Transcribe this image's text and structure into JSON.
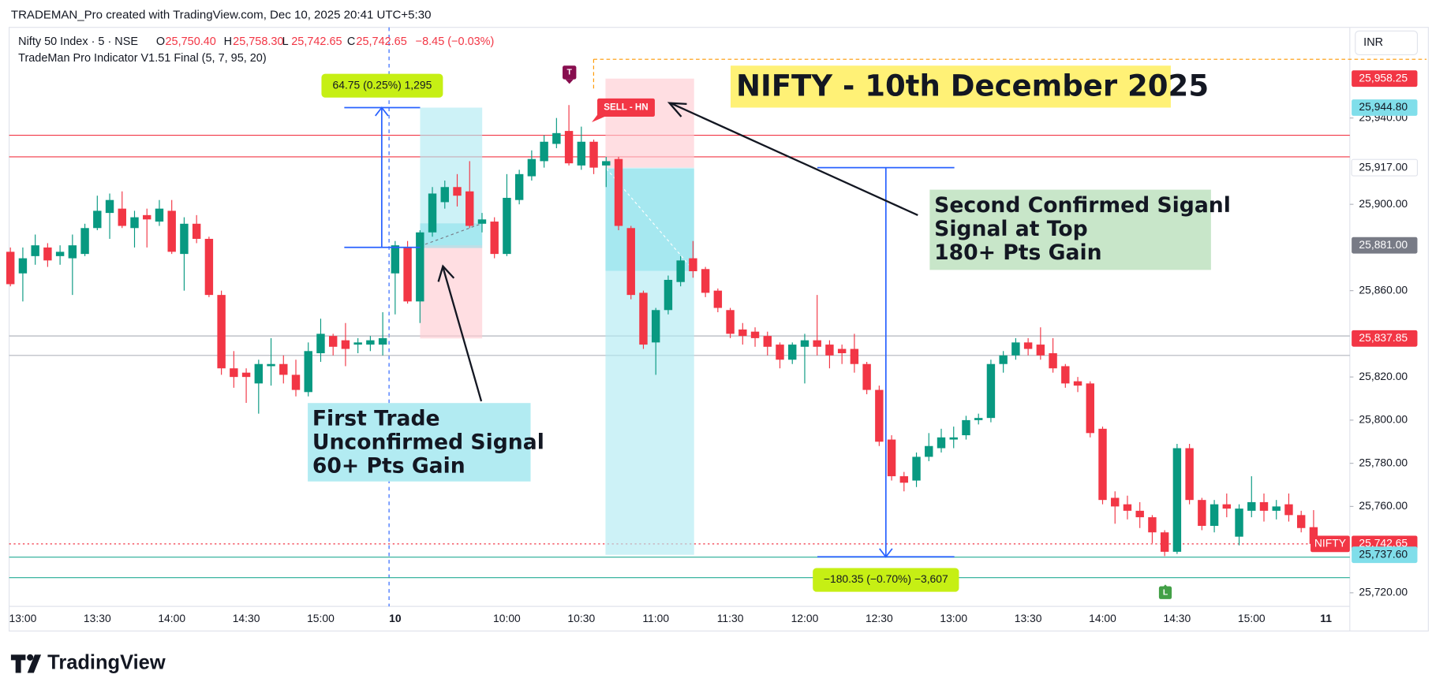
{
  "header": {
    "credit": "TRADEMAN_Pro created with TradingView.com, Dec 10, 2025 20:41 UTC+5:30"
  },
  "chart_data": {
    "type": "candlestick",
    "symbol": "Nifty 50 Index · 5 · NSE",
    "ohlc_legend": [
      {
        "label": "O",
        "value": "25,750.40"
      },
      {
        "label": "H",
        "value": "25,758.30"
      },
      {
        "label": "L",
        "value": "25,742.65"
      },
      {
        "label": "C",
        "value": "25,742.65"
      }
    ],
    "change": "−8.45 (−0.03%)",
    "indicator": "TradeMan Pro Indicator V1.51 Final (5, 7, 95, 20)",
    "currency": "INR",
    "up_color": "#089981",
    "down_color": "#f23645",
    "categories": [
      null,
      "13:00",
      null,
      null,
      null,
      null,
      null,
      "13:30",
      null,
      null,
      null,
      null,
      null,
      "14:00",
      null,
      null,
      null,
      null,
      null,
      "14:30",
      null,
      null,
      null,
      null,
      null,
      "15:00",
      null,
      null,
      null,
      null,
      null,
      "10",
      null,
      null,
      null,
      null,
      null,
      null,
      null,
      null,
      "10:00",
      null,
      null,
      null,
      null,
      null,
      "10:30",
      null,
      null,
      null,
      null,
      null,
      "11:00",
      null,
      null,
      null,
      null,
      null,
      "11:30",
      null,
      null,
      null,
      null,
      null,
      "12:00",
      null,
      null,
      null,
      null,
      null,
      "12:30",
      null,
      null,
      null,
      null,
      null,
      "13:00",
      null,
      null,
      null,
      null,
      null,
      "13:30",
      null,
      null,
      null,
      null,
      null,
      "14:00",
      null,
      null,
      null,
      null,
      null,
      "14:30",
      null,
      null,
      null,
      null,
      null,
      "15:00",
      null,
      null,
      null,
      null,
      null,
      "11"
    ],
    "open": [
      25878,
      25868,
      25876,
      25880,
      25876,
      25875,
      25877,
      25889,
      25896,
      25898,
      25889,
      25895,
      25892,
      25897,
      25877,
      25891,
      25884,
      25858,
      25824,
      25822,
      25817,
      25825,
      25826,
      25821,
      25813,
      25831,
      25839,
      25837,
      25835,
      25835,
      25835,
      25868,
      25880,
      25855,
      25887,
      25901,
      25908,
      25906,
      25891,
      25892,
      25877,
      25902,
      25913,
      25920,
      25928,
      25934,
      25918,
      25929,
      25918,
      25921,
      25889,
      25859,
      25836,
      25851,
      25864,
      25875,
      25870,
      25860,
      25851,
      25842,
      25841,
      25839,
      25835,
      25828,
      25834,
      25837,
      25835,
      25833,
      25833,
      25826,
      25814,
      25791,
      25774,
      25772,
      25783,
      25787,
      25791,
      25793,
      25800,
      25801,
      25826,
      25830,
      25836,
      25835,
      25831,
      25825,
      25818,
      25817,
      25796,
      25764,
      25761,
      25758,
      25755,
      25748,
      25739,
      25787,
      25763,
      25751,
      25761,
      25746,
      25758,
      25762,
      25758,
      25761,
      25756,
      25750.4,
      null
    ],
    "high": [
      25880,
      25880,
      25886,
      25882,
      25881,
      25886,
      25891,
      25904,
      25905,
      25906,
      25897,
      25898,
      25902,
      25902,
      25894,
      25895,
      25885,
      25860,
      25832,
      25824,
      25828,
      25838,
      25830,
      25828,
      25836,
      25847,
      25840,
      25845,
      25838,
      25839,
      25850,
      25883,
      25883,
      25888,
      25908,
      25911,
      25914,
      25920,
      25896,
      25894,
      25914,
      25916,
      25925,
      25932,
      25940,
      25946,
      25936,
      25930,
      25922,
      25922,
      25890,
      25860,
      25852,
      25867,
      25876,
      25883,
      25871,
      25861,
      25852,
      25845,
      25843,
      25841,
      25836,
      25836,
      25840,
      25858,
      25837,
      25835,
      25840,
      25827,
      25816,
      25793,
      25776,
      25785,
      25794,
      25796,
      25797,
      25802,
      25803,
      25828,
      25832,
      25838,
      25838,
      25843,
      25838,
      25826,
      25820,
      25818,
      25797,
      25767,
      25765,
      25762,
      25756,
      25749,
      25789,
      25789,
      25764,
      25763,
      25766,
      25761,
      25774,
      25766,
      25763,
      25766,
      25758,
      25758.3,
      null
    ],
    "low": [
      25862,
      25855,
      25872,
      25871,
      25872,
      25858,
      25876,
      25888,
      25884,
      25889,
      25880,
      25880,
      25890,
      25877,
      25860,
      25882,
      25857,
      25821,
      25815,
      25808,
      25803,
      25816,
      25817,
      25811,
      25811,
      25827,
      25830,
      25825,
      25831,
      25832,
      25830,
      25849,
      25854,
      25845,
      25885,
      25898,
      25899,
      25889,
      25887,
      25875,
      25876,
      25900,
      25911,
      25917,
      25926,
      25918,
      25916,
      25914,
      25908,
      25888,
      25856,
      25833,
      25821,
      25849,
      25862,
      25866,
      25857,
      25850,
      25838,
      25835,
      25834,
      25830,
      25824,
      25826,
      25817,
      25830,
      25824,
      25826,
      25822,
      25812,
      25788,
      25772,
      25767,
      25769,
      25781,
      25785,
      25787,
      25791,
      25798,
      25799,
      25822,
      25828,
      25830,
      25828,
      25822,
      25815,
      25813,
      25792,
      25761,
      25752,
      25754,
      25750,
      25743,
      25737,
      25738,
      25761,
      25749,
      25748,
      25755,
      25742,
      25755,
      25753,
      25754,
      25753,
      25748,
      25742.65,
      null
    ],
    "close": [
      25863,
      25875,
      25881,
      25874,
      25878,
      25881,
      25889,
      25897,
      25902,
      25890,
      25894,
      25893,
      25898,
      25878,
      25891,
      25884,
      25858,
      25824,
      25820,
      25820,
      25826,
      25826,
      25821,
      25814,
      25832,
      25840,
      25834,
      25833,
      25836,
      25837,
      25838,
      25881,
      25855,
      25887,
      25905,
      25908,
      25904,
      25890,
      25893,
      25877,
      25903,
      25914,
      25921,
      25929,
      25933,
      25919,
      25929,
      25917,
      25920,
      25890,
      25858,
      25835,
      25851,
      25865,
      25874,
      25869,
      25859,
      25852,
      25840,
      25839,
      25838,
      25834,
      25828,
      25835,
      25837,
      25834,
      25830,
      25831,
      25826,
      25814,
      25790,
      25774,
      25771,
      25783,
      25788,
      25792,
      25792,
      25800,
      25801,
      25826,
      25830,
      25836,
      25833,
      25830,
      25824,
      25817,
      25816,
      25794,
      25763,
      25760,
      25758,
      25755,
      25748,
      25739,
      25787,
      25763,
      25751,
      25761,
      25759,
      25759,
      25762,
      25758,
      25760,
      25756,
      25750,
      25742.65,
      null
    ],
    "ylim": [
      25713.7,
      25982
    ],
    "yticks": [
      {
        "value": 25720,
        "label": "25,720.00"
      },
      {
        "value": 25760,
        "label": "25,760.00"
      },
      {
        "value": 25780,
        "label": "25,780.00"
      },
      {
        "value": 25800,
        "label": "25,800.00"
      },
      {
        "value": 25820,
        "label": "25,820.00"
      },
      {
        "value": 25860,
        "label": "25,860.00"
      },
      {
        "value": 25900,
        "label": "25,900.00"
      },
      {
        "value": 25940,
        "label": "25,940.00"
      }
    ],
    "hlines": [
      {
        "value": 25932,
        "color": "#f23645",
        "dash": false
      },
      {
        "value": 25922,
        "color": "#f23645",
        "dash": false
      },
      {
        "value": 25839,
        "color": "#b2b5be",
        "dash": false
      },
      {
        "value": 25830,
        "color": "#b2b5be",
        "dash": false
      },
      {
        "value": 25736.5,
        "color": "#22ab94",
        "dash": false
      },
      {
        "value": 25727,
        "color": "#22ab94",
        "dash": false
      },
      {
        "value": 25742.65,
        "color": "#f23645",
        "dash": true
      }
    ],
    "price_tags": [
      {
        "value": 25958.25,
        "label": "25,958.25",
        "color": "#f23645"
      },
      {
        "value": 25944.8,
        "label": "25,944.80",
        "color": "#80deea"
      },
      {
        "value": 25917,
        "label": "25,917.00",
        "color": "#ffffff"
      },
      {
        "value": 25881,
        "label": "25,881.00",
        "color": "#787b86"
      },
      {
        "value": 25837.85,
        "label": "25,837.85",
        "color": "#f23645"
      },
      {
        "value": 25742.65,
        "label": "25,742.65",
        "color": "#f23645"
      },
      {
        "value": 25737.6,
        "label": "25,737.60",
        "color": "#80deea"
      }
    ],
    "symbol_tag": "NIFTY",
    "positions": [
      {
        "entry": 25881,
        "target": 25944.8,
        "stop": 25837.85
      },
      {
        "entry": 25917,
        "target": 25737.6,
        "stop": 25958.25
      }
    ],
    "measures": [
      {
        "from": 25880.05,
        "to": 25944.8,
        "label": "64.75 (0.25%) 1,295"
      },
      {
        "from": 25917,
        "to": 25736.65,
        "label": "−180.35 (−0.70%) −3,607"
      }
    ],
    "signal_label": "SELL - HN",
    "markers": [
      "T",
      "L"
    ],
    "title": "NIFTY - 10th December 2025",
    "notes": [
      [
        "Second Confirmed Siganl",
        "Signal at Top",
        "180+ Pts Gain"
      ],
      [
        "First Trade",
        "Unconfirmed Signal",
        "60+ Pts Gain"
      ]
    ]
  },
  "footer": {
    "logo": "TradingView"
  }
}
